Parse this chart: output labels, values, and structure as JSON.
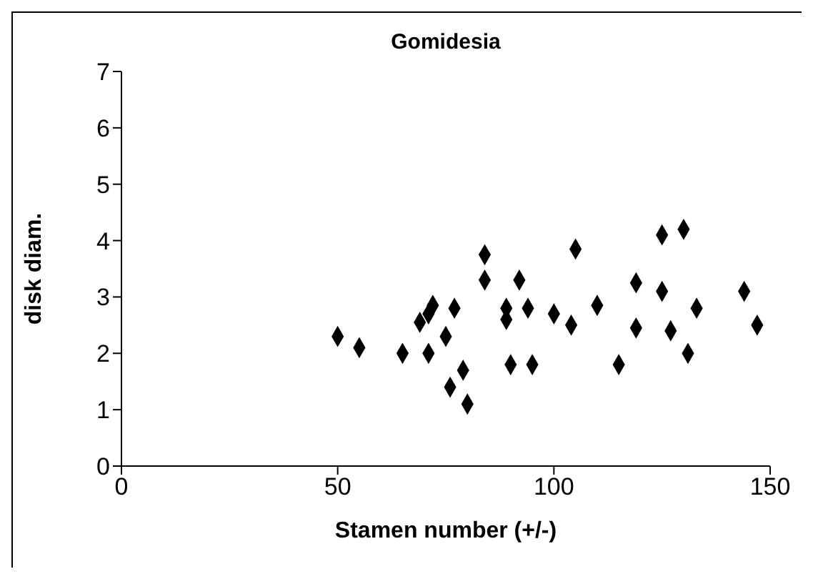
{
  "chart_data": {
    "type": "scatter",
    "title": "Gomidesia",
    "xlabel": "Stamen number (+/-)",
    "ylabel": "disk diam.",
    "x": [
      50,
      55,
      65,
      71,
      69,
      71,
      72,
      77,
      75,
      76,
      79,
      80,
      84,
      84,
      92,
      89,
      89,
      94,
      90,
      95,
      100,
      105,
      104,
      110,
      115,
      119,
      119,
      125,
      130,
      125,
      127,
      133,
      131,
      144,
      147
    ],
    "values": [
      2.3,
      2.1,
      2.0,
      2.0,
      2.55,
      2.7,
      2.85,
      2.8,
      2.3,
      1.4,
      1.7,
      1.1,
      3.75,
      3.3,
      3.3,
      2.6,
      2.8,
      2.8,
      1.8,
      1.8,
      2.7,
      3.85,
      2.5,
      2.85,
      1.8,
      3.25,
      2.45,
      4.1,
      4.2,
      3.1,
      2.4,
      2.8,
      2.0,
      3.1,
      2.5
    ],
    "color": "#000000",
    "marker": "diamond",
    "xlim": [
      0,
      150
    ],
    "xticks": [
      0,
      50,
      100,
      150
    ],
    "ylim": [
      0,
      7
    ],
    "yticks": [
      0,
      1,
      2,
      3,
      4,
      5,
      6,
      7
    ],
    "grid": false,
    "legend": false
  }
}
